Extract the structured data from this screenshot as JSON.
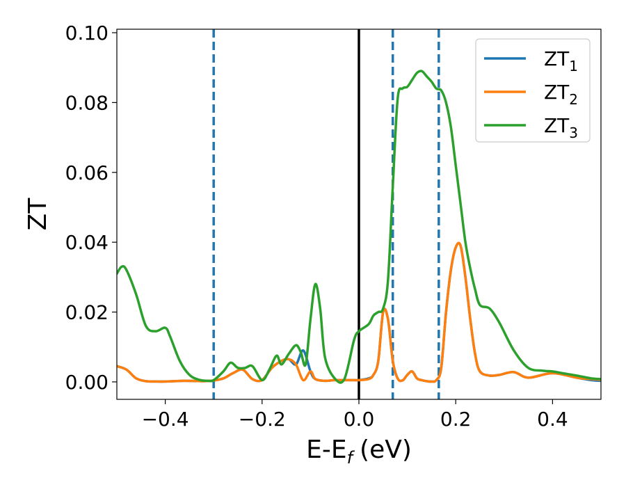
{
  "chart_data": {
    "type": "line",
    "xlabel_main": "E-E",
    "xlabel_sub": "f",
    "xlabel_unit": "(eV)",
    "ylabel": "ZT",
    "xlim": [
      -0.5,
      0.5
    ],
    "ylim": [
      -0.005,
      0.101
    ],
    "x_ticks": [
      -0.4,
      -0.2,
      0.0,
      0.2,
      0.4
    ],
    "x_tick_labels": [
      "−0.4",
      "−0.2",
      "0.0",
      "0.2",
      "0.4"
    ],
    "y_ticks": [
      0.0,
      0.02,
      0.04,
      0.06,
      0.08,
      0.1
    ],
    "y_tick_labels": [
      "0.00",
      "0.02",
      "0.04",
      "0.06",
      "0.08",
      "0.10"
    ],
    "grid": false,
    "legend_position": "top-right",
    "vertical_lines": [
      {
        "x": -0.3,
        "style": "dashed",
        "color": "#1f77b4"
      },
      {
        "x": 0.0,
        "style": "solid",
        "color": "#000000"
      },
      {
        "x": 0.07,
        "style": "dashed",
        "color": "#1f77b4"
      },
      {
        "x": 0.165,
        "style": "dashed",
        "color": "#1f77b4"
      }
    ],
    "series": [
      {
        "name": "ZT",
        "sub": "1",
        "color": "#1f77b4",
        "x": [
          -0.5,
          -0.48,
          -0.46,
          -0.44,
          -0.42,
          -0.4,
          -0.36,
          -0.32,
          -0.3,
          -0.28,
          -0.26,
          -0.24,
          -0.22,
          -0.2,
          -0.18,
          -0.16,
          -0.145,
          -0.13,
          -0.115,
          -0.1,
          -0.09,
          -0.07,
          -0.05,
          -0.03,
          -0.01,
          0.0,
          0.02,
          0.03,
          0.04,
          0.05,
          0.06,
          0.07,
          0.08,
          0.09,
          0.1,
          0.11,
          0.12,
          0.13,
          0.14,
          0.15,
          0.16,
          0.17,
          0.18,
          0.19,
          0.2,
          0.21,
          0.22,
          0.23,
          0.24,
          0.25,
          0.27,
          0.29,
          0.32,
          0.35,
          0.4,
          0.45,
          0.48,
          0.5
        ],
        "y": [
          0.0045,
          0.0035,
          0.001,
          0.0002,
          0.0001,
          0.0001,
          0.0003,
          0.0002,
          0.0004,
          0.001,
          0.0025,
          0.0035,
          0.0008,
          0.0005,
          0.004,
          0.006,
          0.0065,
          0.005,
          0.009,
          0.003,
          0.0008,
          0.0003,
          0.0005,
          0.0005,
          0.0005,
          0.0005,
          0.001,
          0.002,
          0.006,
          0.02,
          0.018,
          0.006,
          0.001,
          0.0004,
          0.002,
          0.003,
          0.001,
          0.0005,
          0.0002,
          0.0001,
          0.0005,
          0.004,
          0.02,
          0.032,
          0.0385,
          0.039,
          0.03,
          0.018,
          0.008,
          0.003,
          0.0018,
          0.002,
          0.0028,
          0.0012,
          0.0025,
          0.0012,
          0.0005,
          0.0003
        ]
      },
      {
        "name": "ZT",
        "sub": "2",
        "color": "#ff7f0e",
        "x": [
          -0.5,
          -0.48,
          -0.46,
          -0.44,
          -0.42,
          -0.4,
          -0.36,
          -0.32,
          -0.3,
          -0.28,
          -0.26,
          -0.24,
          -0.22,
          -0.2,
          -0.18,
          -0.16,
          -0.145,
          -0.13,
          -0.115,
          -0.1,
          -0.09,
          -0.07,
          -0.05,
          -0.03,
          -0.01,
          0.0,
          0.02,
          0.03,
          0.04,
          0.05,
          0.06,
          0.07,
          0.08,
          0.09,
          0.1,
          0.11,
          0.12,
          0.13,
          0.14,
          0.15,
          0.16,
          0.17,
          0.18,
          0.19,
          0.2,
          0.21,
          0.22,
          0.23,
          0.24,
          0.25,
          0.27,
          0.29,
          0.32,
          0.35,
          0.4,
          0.45,
          0.48,
          0.5
        ],
        "y": [
          0.0045,
          0.0035,
          0.001,
          0.0002,
          0.0001,
          0.0001,
          0.0003,
          0.0002,
          0.0004,
          0.001,
          0.0025,
          0.0035,
          0.0008,
          0.0005,
          0.004,
          0.006,
          0.0065,
          0.005,
          0.0005,
          0.003,
          0.0008,
          0.0003,
          0.0005,
          0.0005,
          0.0005,
          0.0005,
          0.0008,
          0.002,
          0.006,
          0.02,
          0.018,
          0.006,
          0.001,
          0.0004,
          0.002,
          0.003,
          0.001,
          0.0005,
          0.0002,
          0.0001,
          0.0005,
          0.004,
          0.02,
          0.032,
          0.0385,
          0.039,
          0.03,
          0.018,
          0.008,
          0.003,
          0.0018,
          0.002,
          0.0028,
          0.0012,
          0.0025,
          0.0012,
          0.0008,
          0.0006
        ]
      },
      {
        "name": "ZT",
        "sub": "3",
        "color": "#2ca02c",
        "x": [
          -0.5,
          -0.49,
          -0.48,
          -0.46,
          -0.44,
          -0.42,
          -0.4,
          -0.39,
          -0.37,
          -0.35,
          -0.33,
          -0.31,
          -0.3,
          -0.28,
          -0.265,
          -0.25,
          -0.235,
          -0.22,
          -0.2,
          -0.185,
          -0.17,
          -0.16,
          -0.145,
          -0.13,
          -0.12,
          -0.11,
          -0.1,
          -0.09,
          -0.08,
          -0.07,
          -0.05,
          -0.03,
          -0.01,
          0.0,
          0.02,
          0.03,
          0.04,
          0.05,
          0.06,
          0.07,
          0.08,
          0.09,
          0.1,
          0.11,
          0.12,
          0.13,
          0.14,
          0.15,
          0.16,
          0.17,
          0.18,
          0.19,
          0.2,
          0.21,
          0.22,
          0.23,
          0.24,
          0.25,
          0.27,
          0.29,
          0.32,
          0.35,
          0.38,
          0.4,
          0.42,
          0.45,
          0.48,
          0.5
        ],
        "y": [
          0.031,
          0.033,
          0.032,
          0.025,
          0.016,
          0.0145,
          0.0155,
          0.013,
          0.006,
          0.002,
          0.0006,
          0.0003,
          0.0005,
          0.003,
          0.0055,
          0.004,
          0.004,
          0.0045,
          0.0005,
          0.0035,
          0.0075,
          0.005,
          0.008,
          0.0105,
          0.0085,
          0.005,
          0.018,
          0.028,
          0.021,
          0.007,
          0.001,
          0.0008,
          0.012,
          0.0145,
          0.0165,
          0.019,
          0.02,
          0.021,
          0.029,
          0.056,
          0.081,
          0.084,
          0.0845,
          0.0865,
          0.0885,
          0.089,
          0.0875,
          0.086,
          0.084,
          0.0835,
          0.08,
          0.073,
          0.062,
          0.051,
          0.04,
          0.0325,
          0.0265,
          0.022,
          0.021,
          0.017,
          0.009,
          0.004,
          0.0032,
          0.003,
          0.0025,
          0.0018,
          0.001,
          0.0008
        ]
      }
    ]
  }
}
